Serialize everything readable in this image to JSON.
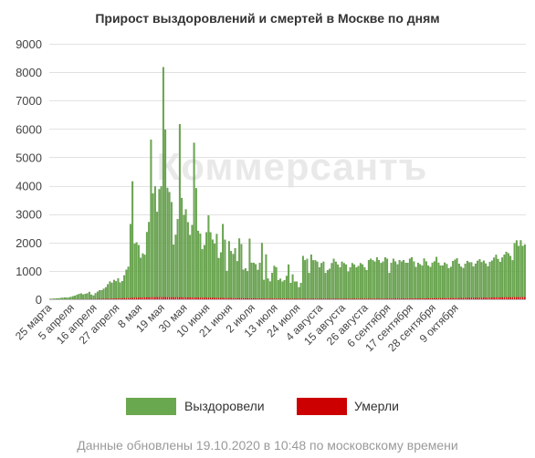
{
  "chart_data": {
    "type": "bar",
    "stacked": true,
    "title": "Прирост выздоровлений и смертей в Москве по дням",
    "ylim": [
      0,
      9000
    ],
    "yticks": [
      0,
      1000,
      2000,
      3000,
      4000,
      5000,
      6000,
      7000,
      8000,
      9000
    ],
    "grid": "horizontal",
    "legend_position": "bottom",
    "colors": {
      "recovered": "#6aa84f",
      "recovered_stroke": "#4f8a36",
      "died": "#cc0000"
    },
    "x_labels": [
      "25 марта",
      "5 апреля",
      "16 апреля",
      "27 апреля",
      "8 мая",
      "19 мая",
      "30 мая",
      "10 июня",
      "21 июня",
      "2 июля",
      "13 июля",
      "24 июля",
      "4 августа",
      "15 августа",
      "26 августа",
      "6 сентября",
      "17 сентября",
      "28 сентября",
      "9 октября"
    ],
    "x_label_step_days": 11,
    "series": [
      {
        "name": "Выздоровели",
        "values": [
          10,
          15,
          20,
          25,
          30,
          40,
          50,
          60,
          50,
          60,
          80,
          100,
          120,
          150,
          180,
          200,
          160,
          180,
          200,
          250,
          150,
          120,
          200,
          250,
          300,
          300,
          350,
          400,
          500,
          600,
          550,
          650,
          600,
          700,
          550,
          600,
          800,
          1000,
          1100,
          2600,
          4100,
          1900,
          1950,
          1850,
          1400,
          1550,
          1500,
          2300,
          2650,
          5550,
          3650,
          3900,
          3000,
          3800,
          3900,
          8100,
          5900,
          3850,
          3700,
          3350,
          1850,
          2200,
          2750,
          6100,
          3500,
          2900,
          3100,
          2650,
          2200,
          2550,
          5450,
          3850,
          2350,
          2250,
          1700,
          1850,
          2300,
          2900,
          2300,
          2050,
          1900,
          2250,
          1400,
          1600,
          2600,
          2050,
          950,
          2000,
          1650,
          1550,
          1750,
          1300,
          2100,
          1900,
          1000,
          1050,
          950,
          2100,
          1250,
          1250,
          1200,
          1000,
          1250,
          1950,
          650,
          1550,
          700,
          600,
          900,
          1150,
          1100,
          650,
          700,
          600,
          650,
          800,
          1200,
          550,
          850,
          600,
          600,
          400,
          550,
          1500,
          1350,
          1400,
          900,
          1550,
          1350,
          1350,
          1300,
          1100,
          1250,
          1300,
          900,
          1000,
          1050,
          1250,
          1400,
          1300,
          1200,
          1100,
          1300,
          1250,
          1200,
          950,
          1100,
          1250,
          1200,
          1100,
          1150,
          1250,
          1200,
          1100,
          1000,
          1350,
          1400,
          1350,
          1300,
          1450,
          1350,
          1250,
          1300,
          1450,
          1400,
          900,
          1250,
          1400,
          1300,
          1200,
          1350,
          1300,
          1350,
          1250,
          1250,
          1400,
          1450,
          1300,
          1100,
          1250,
          1200,
          1150,
          1400,
          1300,
          1150,
          1100,
          1250,
          1300,
          1450,
          1250,
          1150,
          1150,
          1250,
          1200,
          1050,
          1100,
          1300,
          1350,
          1400,
          1200,
          1100,
          1050,
          1200,
          1300,
          1250,
          1250,
          1100,
          1200,
          1300,
          1350,
          1250,
          1300,
          1200,
          1100,
          1250,
          1300,
          1400,
          1500,
          1350,
          1250,
          1400,
          1500,
          1600,
          1550,
          1450,
          1300,
          1900,
          2000,
          1800,
          2000,
          1800,
          1850
        ]
      },
      {
        "name": "Умерли",
        "values": [
          0,
          0,
          0,
          0,
          0,
          0,
          0,
          0,
          0,
          0,
          1,
          1,
          2,
          2,
          3,
          3,
          4,
          5,
          6,
          7,
          8,
          9,
          10,
          12,
          14,
          16,
          18,
          20,
          22,
          25,
          27,
          28,
          30,
          32,
          34,
          36,
          38,
          40,
          42,
          45,
          48,
          50,
          52,
          55,
          58,
          60,
          62,
          64,
          66,
          68,
          70,
          72,
          74,
          74,
          74,
          74,
          74,
          72,
          72,
          70,
          70,
          68,
          68,
          66,
          66,
          64,
          64,
          62,
          62,
          60,
          60,
          58,
          58,
          56,
          56,
          54,
          54,
          52,
          52,
          50,
          50,
          48,
          48,
          46,
          46,
          44,
          44,
          42,
          42,
          40,
          40,
          38,
          38,
          36,
          36,
          34,
          34,
          32,
          32,
          30,
          30,
          30,
          28,
          28,
          28,
          26,
          26,
          26,
          24,
          24,
          24,
          22,
          22,
          22,
          22,
          20,
          20,
          20,
          20,
          20,
          20,
          20,
          20,
          20,
          20,
          20,
          20,
          20,
          20,
          20,
          20,
          20,
          20,
          20,
          20,
          20,
          20,
          20,
          20,
          20,
          20,
          20,
          20,
          20,
          20,
          20,
          20,
          20,
          20,
          20,
          20,
          20,
          22,
          22,
          22,
          22,
          22,
          22,
          22,
          22,
          24,
          24,
          24,
          24,
          24,
          24,
          26,
          26,
          26,
          26,
          26,
          26,
          28,
          28,
          28,
          28,
          28,
          30,
          30,
          30,
          30,
          30,
          32,
          32,
          32,
          32,
          34,
          34,
          34,
          36,
          36,
          36,
          38,
          38,
          40,
          40,
          40,
          42,
          42,
          44,
          44,
          46,
          46,
          48,
          48,
          50,
          50,
          52,
          52,
          54,
          54,
          56,
          56,
          58,
          60,
          60,
          62,
          62,
          64,
          64,
          66,
          66,
          68,
          68,
          70,
          70,
          72,
          72,
          74,
          74,
          76,
          76
        ]
      }
    ]
  },
  "legend": [
    {
      "label": "Выздоровели",
      "color": "#6aa84f"
    },
    {
      "label": "Умерли",
      "color": "#cc0000"
    }
  ],
  "watermark": "Коммерсантъ",
  "footer": "Данные обновлены 19.10.2020 в 10:48 по московскому времени"
}
